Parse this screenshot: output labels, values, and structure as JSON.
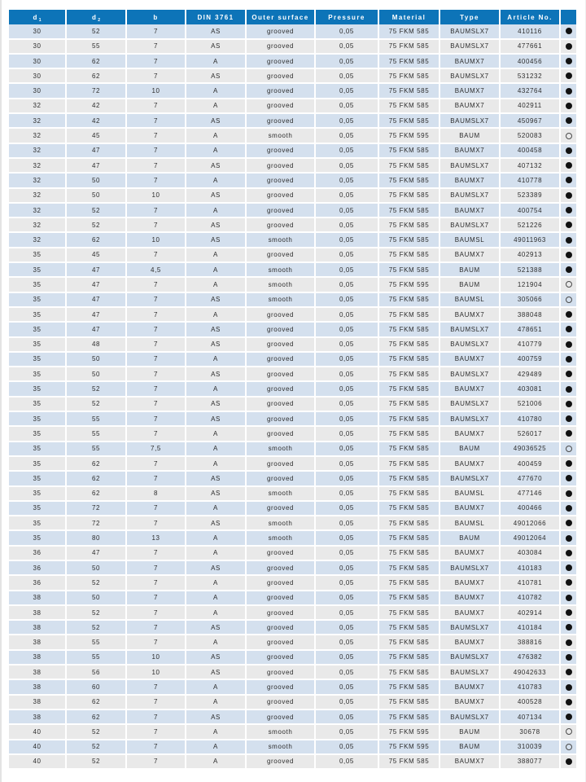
{
  "table": {
    "columns": [
      {
        "label": "d",
        "sub": "1"
      },
      {
        "label": "d",
        "sub": "2"
      },
      {
        "label": "b",
        "sub": ""
      },
      {
        "label": "DIN 3761",
        "sub": ""
      },
      {
        "label": "Outer surface",
        "sub": ""
      },
      {
        "label": "Pressure",
        "sub": ""
      },
      {
        "label": "Material",
        "sub": ""
      },
      {
        "label": "Type",
        "sub": ""
      },
      {
        "label": "Article No.",
        "sub": ""
      },
      {
        "label": "",
        "sub": ""
      }
    ],
    "availability_icon_legend": {
      "filled": "available-filled-circle",
      "hollow": "available-hollow-circle"
    },
    "rows": [
      [
        "30",
        "52",
        "7",
        "AS",
        "grooved",
        "0,05",
        "75 FKM 585",
        "BAUMSLX7",
        "410116",
        "filled"
      ],
      [
        "30",
        "55",
        "7",
        "AS",
        "grooved",
        "0,05",
        "75 FKM 585",
        "BAUMSLX7",
        "477661",
        "filled"
      ],
      [
        "30",
        "62",
        "7",
        "A",
        "grooved",
        "0,05",
        "75 FKM 585",
        "BAUMX7",
        "400456",
        "filled"
      ],
      [
        "30",
        "62",
        "7",
        "AS",
        "grooved",
        "0,05",
        "75 FKM 585",
        "BAUMSLX7",
        "531232",
        "filled"
      ],
      [
        "30",
        "72",
        "10",
        "A",
        "grooved",
        "0,05",
        "75 FKM 585",
        "BAUMX7",
        "432764",
        "filled"
      ],
      [
        "32",
        "42",
        "7",
        "A",
        "grooved",
        "0,05",
        "75 FKM 585",
        "BAUMX7",
        "402911",
        "filled"
      ],
      [
        "32",
        "42",
        "7",
        "AS",
        "grooved",
        "0,05",
        "75 FKM 585",
        "BAUMSLX7",
        "450967",
        "filled"
      ],
      [
        "32",
        "45",
        "7",
        "A",
        "smooth",
        "0,05",
        "75 FKM 595",
        "BAUM",
        "520083",
        "hollow"
      ],
      [
        "32",
        "47",
        "7",
        "A",
        "grooved",
        "0,05",
        "75 FKM 585",
        "BAUMX7",
        "400458",
        "filled"
      ],
      [
        "32",
        "47",
        "7",
        "AS",
        "grooved",
        "0,05",
        "75 FKM 585",
        "BAUMSLX7",
        "407132",
        "filled"
      ],
      [
        "32",
        "50",
        "7",
        "A",
        "grooved",
        "0,05",
        "75 FKM 585",
        "BAUMX7",
        "410778",
        "filled"
      ],
      [
        "32",
        "50",
        "10",
        "AS",
        "grooved",
        "0,05",
        "75 FKM 585",
        "BAUMSLX7",
        "523389",
        "filled"
      ],
      [
        "32",
        "52",
        "7",
        "A",
        "grooved",
        "0,05",
        "75 FKM 585",
        "BAUMX7",
        "400754",
        "filled"
      ],
      [
        "32",
        "52",
        "7",
        "AS",
        "grooved",
        "0,05",
        "75 FKM 585",
        "BAUMSLX7",
        "521226",
        "filled"
      ],
      [
        "32",
        "62",
        "10",
        "AS",
        "smooth",
        "0,05",
        "75 FKM 585",
        "BAUMSL",
        "49011963",
        "filled"
      ],
      [
        "35",
        "45",
        "7",
        "A",
        "grooved",
        "0,05",
        "75 FKM 585",
        "BAUMX7",
        "402913",
        "filled"
      ],
      [
        "35",
        "47",
        "4,5",
        "A",
        "smooth",
        "0,05",
        "75 FKM 585",
        "BAUM",
        "521388",
        "filled"
      ],
      [
        "35",
        "47",
        "7",
        "A",
        "smooth",
        "0,05",
        "75 FKM 595",
        "BAUM",
        "121904",
        "hollow"
      ],
      [
        "35",
        "47",
        "7",
        "AS",
        "smooth",
        "0,05",
        "75 FKM 585",
        "BAUMSL",
        "305066",
        "hollow"
      ],
      [
        "35",
        "47",
        "7",
        "A",
        "grooved",
        "0,05",
        "75 FKM 585",
        "BAUMX7",
        "388048",
        "filled"
      ],
      [
        "35",
        "47",
        "7",
        "AS",
        "grooved",
        "0,05",
        "75 FKM 585",
        "BAUMSLX7",
        "478651",
        "filled"
      ],
      [
        "35",
        "48",
        "7",
        "AS",
        "grooved",
        "0,05",
        "75 FKM 585",
        "BAUMSLX7",
        "410779",
        "filled"
      ],
      [
        "35",
        "50",
        "7",
        "A",
        "grooved",
        "0,05",
        "75 FKM 585",
        "BAUMX7",
        "400759",
        "filled"
      ],
      [
        "35",
        "50",
        "7",
        "AS",
        "grooved",
        "0,05",
        "75 FKM 585",
        "BAUMSLX7",
        "429489",
        "filled"
      ],
      [
        "35",
        "52",
        "7",
        "A",
        "grooved",
        "0,05",
        "75 FKM 585",
        "BAUMX7",
        "403081",
        "filled"
      ],
      [
        "35",
        "52",
        "7",
        "AS",
        "grooved",
        "0,05",
        "75 FKM 585",
        "BAUMSLX7",
        "521006",
        "filled"
      ],
      [
        "35",
        "55",
        "7",
        "AS",
        "grooved",
        "0,05",
        "75 FKM 585",
        "BAUMSLX7",
        "410780",
        "filled"
      ],
      [
        "35",
        "55",
        "7",
        "A",
        "grooved",
        "0,05",
        "75 FKM 585",
        "BAUMX7",
        "526017",
        "filled"
      ],
      [
        "35",
        "55",
        "7,5",
        "A",
        "smooth",
        "0,05",
        "75 FKM 585",
        "BAUM",
        "49036525",
        "hollow"
      ],
      [
        "35",
        "62",
        "7",
        "A",
        "grooved",
        "0,05",
        "75 FKM 585",
        "BAUMX7",
        "400459",
        "filled"
      ],
      [
        "35",
        "62",
        "7",
        "AS",
        "grooved",
        "0,05",
        "75 FKM 585",
        "BAUMSLX7",
        "477670",
        "filled"
      ],
      [
        "35",
        "62",
        "8",
        "AS",
        "smooth",
        "0,05",
        "75 FKM 585",
        "BAUMSL",
        "477146",
        "filled"
      ],
      [
        "35",
        "72",
        "7",
        "A",
        "grooved",
        "0,05",
        "75 FKM 585",
        "BAUMX7",
        "400466",
        "filled"
      ],
      [
        "35",
        "72",
        "7",
        "AS",
        "smooth",
        "0,05",
        "75 FKM 585",
        "BAUMSL",
        "49012066",
        "filled"
      ],
      [
        "35",
        "80",
        "13",
        "A",
        "smooth",
        "0,05",
        "75 FKM 585",
        "BAUM",
        "49012064",
        "filled"
      ],
      [
        "36",
        "47",
        "7",
        "A",
        "grooved",
        "0,05",
        "75 FKM 585",
        "BAUMX7",
        "403084",
        "filled"
      ],
      [
        "36",
        "50",
        "7",
        "AS",
        "grooved",
        "0,05",
        "75 FKM 585",
        "BAUMSLX7",
        "410183",
        "filled"
      ],
      [
        "36",
        "52",
        "7",
        "A",
        "grooved",
        "0,05",
        "75 FKM 585",
        "BAUMX7",
        "410781",
        "filled"
      ],
      [
        "38",
        "50",
        "7",
        "A",
        "grooved",
        "0,05",
        "75 FKM 585",
        "BAUMX7",
        "410782",
        "filled"
      ],
      [
        "38",
        "52",
        "7",
        "A",
        "grooved",
        "0,05",
        "75 FKM 585",
        "BAUMX7",
        "402914",
        "filled"
      ],
      [
        "38",
        "52",
        "7",
        "AS",
        "grooved",
        "0,05",
        "75 FKM 585",
        "BAUMSLX7",
        "410184",
        "filled"
      ],
      [
        "38",
        "55",
        "7",
        "A",
        "grooved",
        "0,05",
        "75 FKM 585",
        "BAUMX7",
        "388816",
        "filled"
      ],
      [
        "38",
        "55",
        "10",
        "AS",
        "grooved",
        "0,05",
        "75 FKM 585",
        "BAUMSLX7",
        "476382",
        "filled"
      ],
      [
        "38",
        "56",
        "10",
        "AS",
        "grooved",
        "0,05",
        "75 FKM 585",
        "BAUMSLX7",
        "49042633",
        "filled"
      ],
      [
        "38",
        "60",
        "7",
        "A",
        "grooved",
        "0,05",
        "75 FKM 585",
        "BAUMX7",
        "410783",
        "filled"
      ],
      [
        "38",
        "62",
        "7",
        "A",
        "grooved",
        "0,05",
        "75 FKM 585",
        "BAUMX7",
        "400528",
        "filled"
      ],
      [
        "38",
        "62",
        "7",
        "AS",
        "grooved",
        "0,05",
        "75 FKM 585",
        "BAUMSLX7",
        "407134",
        "filled"
      ],
      [
        "40",
        "52",
        "7",
        "A",
        "smooth",
        "0,05",
        "75 FKM 595",
        "BAUM",
        "30678",
        "hollow"
      ],
      [
        "40",
        "52",
        "7",
        "A",
        "smooth",
        "0,05",
        "75 FKM 595",
        "BAUM",
        "310039",
        "hollow"
      ],
      [
        "40",
        "52",
        "7",
        "A",
        "grooved",
        "0,05",
        "75 FKM 585",
        "BAUMX7",
        "388077",
        "filled"
      ]
    ]
  },
  "colors": {
    "header_blue": "#0d74b8",
    "row_blue": "#d4e0ee",
    "row_gray": "#e9e9e9",
    "text": "#2d2d2d",
    "circle": "#121212"
  }
}
